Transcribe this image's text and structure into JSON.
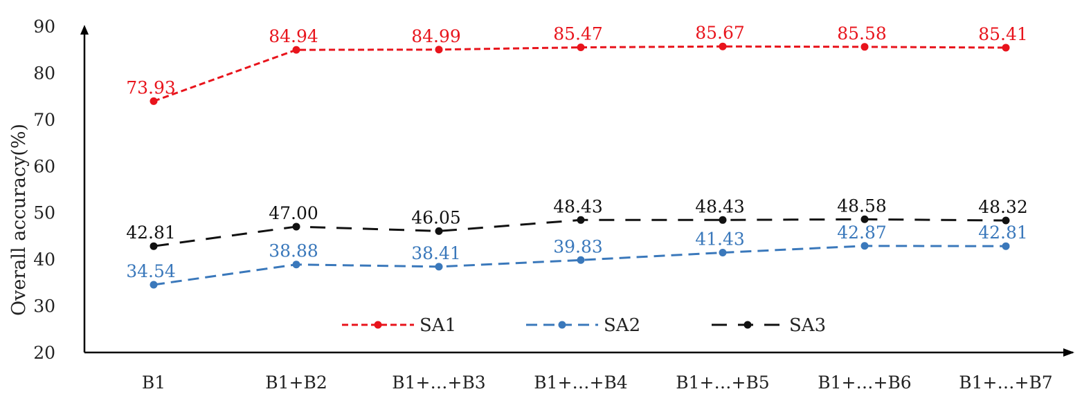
{
  "chart_data": {
    "type": "line",
    "title": "",
    "xlabel": "",
    "ylabel": "Overall accuracy(%)",
    "ylim": [
      20,
      90
    ],
    "yticks": [
      20,
      30,
      40,
      50,
      60,
      70,
      80,
      90
    ],
    "grid": false,
    "legend_position": "bottom-center",
    "categories": [
      "B1",
      "B1+B2",
      "B1+…+B3",
      "B1+…+B4",
      "B1+…+B5",
      "B1+…+B6",
      "B1+…+B7"
    ],
    "series": [
      {
        "name": "SA1",
        "color": "#e8141c",
        "dash": "short-dash",
        "values": [
          73.93,
          84.94,
          84.99,
          85.47,
          85.67,
          85.58,
          85.41
        ],
        "labels": [
          "73.93",
          "84.94",
          "84.99",
          "85.47",
          "85.67",
          "85.58",
          "85.41"
        ]
      },
      {
        "name": "SA2",
        "color": "#3a78bb",
        "dash": "dash",
        "values": [
          34.54,
          38.88,
          38.41,
          39.83,
          41.43,
          42.87,
          42.81
        ],
        "labels": [
          "34.54",
          "38.88",
          "38.41",
          "39.83",
          "41.43",
          "42.87",
          "42.81"
        ]
      },
      {
        "name": "SA3",
        "color": "#111111",
        "dash": "long-dash",
        "values": [
          42.81,
          47.0,
          46.05,
          48.43,
          48.43,
          48.58,
          48.32
        ],
        "labels": [
          "42.81",
          "47.00",
          "46.05",
          "48.43",
          "48.43",
          "48.58",
          "48.32"
        ]
      }
    ]
  }
}
